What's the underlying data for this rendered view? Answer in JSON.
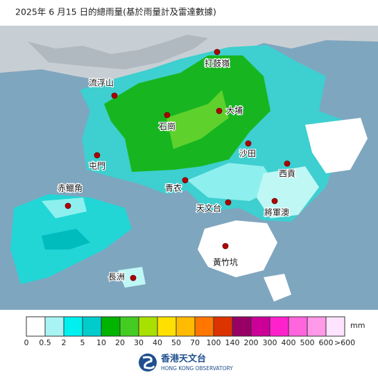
{
  "header": {
    "title": "2025年 6 月15 日的總雨量(基於雨量計及雷達數據)"
  },
  "places": [
    {
      "label": "打鼓嶺"
    },
    {
      "label": "流浮山"
    },
    {
      "label": "大埔"
    },
    {
      "label": "石崗"
    },
    {
      "label": "沙田"
    },
    {
      "label": "屯門"
    },
    {
      "label": "西貢"
    },
    {
      "label": "青衣"
    },
    {
      "label": "赤鱲角"
    },
    {
      "label": "天文台"
    },
    {
      "label": "將軍澳"
    },
    {
      "label": "黃竹坑"
    },
    {
      "label": "長洲"
    }
  ],
  "legend": {
    "unit": "mm",
    "colors": [
      "#ffffff",
      "#a8f4f4",
      "#00f0f0",
      "#00cccc",
      "#00b400",
      "#44cc22",
      "#a8e000",
      "#ffe000",
      "#ffbb00",
      "#ff7700",
      "#dd3300",
      "#990066",
      "#cc0099",
      "#ff22cc",
      "#ff66dd",
      "#ff99e8",
      "#ffe4ff"
    ],
    "labels": [
      "0",
      "0.5",
      "2",
      "5",
      "10",
      "20",
      "30",
      "40",
      "50",
      "70",
      "100",
      "140",
      "200",
      "300",
      "400",
      "500",
      "600",
      ">600"
    ]
  },
  "footer": {
    "name_zh": "香港天文台",
    "name_en": "HONG KONG OBSERVATORY"
  }
}
